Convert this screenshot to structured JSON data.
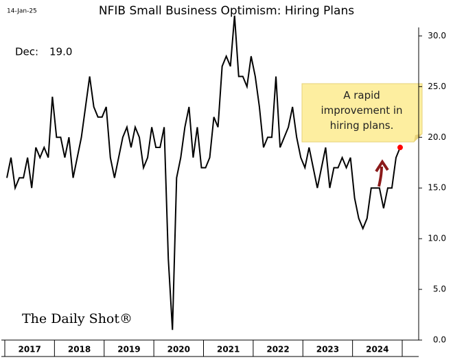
{
  "chart_data": {
    "type": "line",
    "title": "NFIB Small Business Optimism: Hiring Plans",
    "date": "14-Jan-25",
    "source": "The Daily Shot®",
    "last_point_label": "Dec:",
    "last_value_label": "19.0",
    "annotation": "A rapid improvement in hiring plans.",
    "color": "#000000",
    "marker_color": "#ff0000",
    "categories": [
      "2017",
      "2018",
      "2019",
      "2020",
      "2021",
      "2022",
      "2023",
      "2024"
    ],
    "values": [
      [
        16,
        18,
        15,
        16,
        16,
        18,
        15,
        19,
        18,
        19,
        18,
        24
      ],
      [
        20,
        20,
        18,
        20,
        16,
        18,
        20,
        23,
        26,
        23,
        22,
        22
      ],
      [
        23,
        18,
        16,
        18,
        20,
        21,
        19,
        21,
        20,
        17,
        18,
        21
      ],
      [
        19,
        19,
        21,
        8,
        1,
        16,
        18,
        21,
        23,
        18,
        21,
        17
      ],
      [
        17,
        18,
        22,
        21,
        27,
        28,
        27,
        32,
        26,
        26,
        25,
        28
      ],
      [
        26,
        23,
        19,
        20,
        20,
        26,
        19,
        20,
        21,
        23,
        20,
        18
      ],
      [
        17,
        19,
        17,
        15,
        17,
        19,
        15,
        17,
        17,
        18,
        17,
        18
      ],
      [
        14,
        12,
        11,
        12,
        15,
        15,
        15,
        13,
        15,
        15,
        18,
        19
      ]
    ],
    "ylim": [
      0,
      30.5
    ],
    "yticks": [
      {
        "value": 0,
        "label": "0.0"
      },
      {
        "value": 5,
        "label": "5.0"
      },
      {
        "value": 10,
        "label": "10.0"
      },
      {
        "value": 15,
        "label": "15.0"
      },
      {
        "value": 20,
        "label": "20.0"
      },
      {
        "value": 25,
        "label": "25.0"
      },
      {
        "value": 30,
        "label": "30.0"
      }
    ]
  }
}
